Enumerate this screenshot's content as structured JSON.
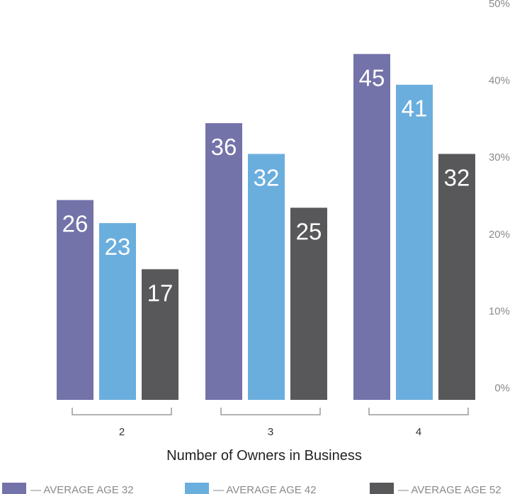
{
  "chart_data": {
    "type": "bar",
    "categories": [
      "2",
      "3",
      "4"
    ],
    "series": [
      {
        "name": "— AVERAGE AGE 32",
        "values": [
          26,
          36,
          45
        ],
        "color": "#7372a9"
      },
      {
        "name": "— AVERAGE AGE 42",
        "values": [
          23,
          32,
          41
        ],
        "color": "#6aaede"
      },
      {
        "name": "— AVERAGE AGE 52",
        "values": [
          17,
          25,
          32
        ],
        "color": "#58585a"
      }
    ],
    "xlabel": "Number of Owners in Business",
    "ylabel": "",
    "ylim": [
      0,
      50
    ],
    "yticks": [
      "0%",
      "10%",
      "20%",
      "30%",
      "40%",
      "50%"
    ],
    "y_axis_side": "right",
    "grid": false,
    "legend_position": "bottom"
  }
}
